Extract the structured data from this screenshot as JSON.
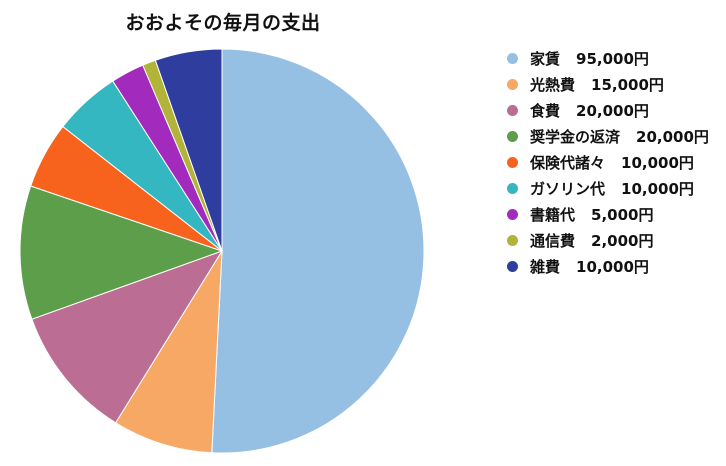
{
  "chart_data": {
    "type": "pie",
    "title": "おおよその毎月の支出",
    "legend_position": "right",
    "slices": [
      {
        "label": "家賃",
        "amount_text": "95,000円",
        "value": 95000,
        "color": "#96BFE4"
      },
      {
        "label": "光熱費",
        "amount_text": "15,000円",
        "value": 15000,
        "color": "#F7A865"
      },
      {
        "label": "食費",
        "amount_text": "20,000円",
        "value": 20000,
        "color": "#BB6D93"
      },
      {
        "label": "奨学金の返済",
        "amount_text": "20,000円",
        "value": 20000,
        "color": "#5C9E4A"
      },
      {
        "label": "保険代諸々",
        "amount_text": "10,000円",
        "value": 10000,
        "color": "#F7621D"
      },
      {
        "label": "ガソリン代",
        "amount_text": "10,000円",
        "value": 10000,
        "color": "#35B7C1"
      },
      {
        "label": "書籍代",
        "amount_text": "5,000円",
        "value": 5000,
        "color": "#A22BBE"
      },
      {
        "label": "通信費",
        "amount_text": "2,000円",
        "value": 2000,
        "color": "#B2B339"
      },
      {
        "label": "雑費",
        "amount_text": "10,000円",
        "value": 10000,
        "color": "#2E3D9E"
      }
    ]
  }
}
